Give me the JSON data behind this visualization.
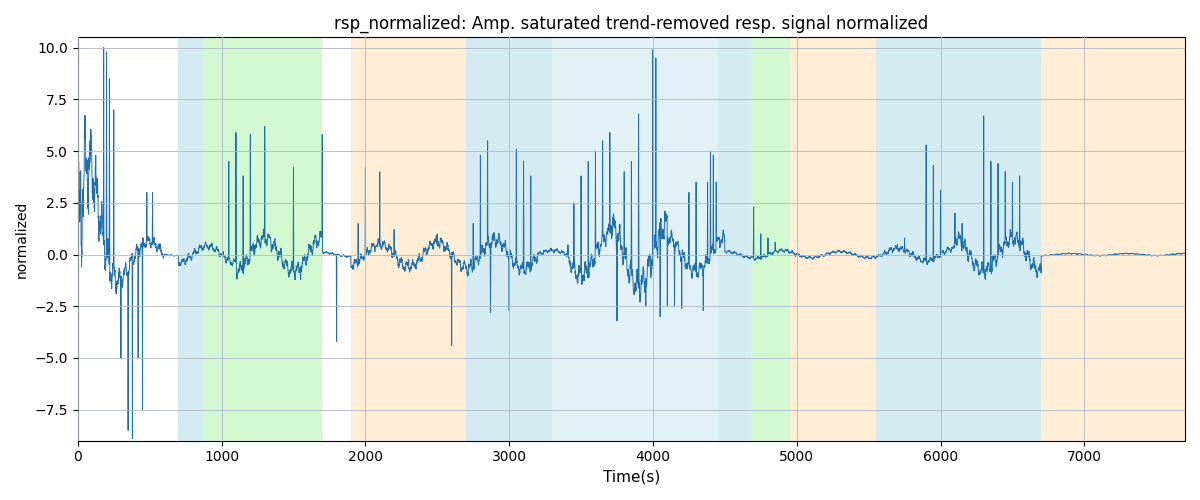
{
  "title": "rsp_normalized: Amp. saturated trend-removed resp. signal normalized",
  "xlabel": "Time(s)",
  "ylabel": "normalized",
  "xlim": [
    0,
    7700
  ],
  "ylim": [
    -9,
    10.5
  ],
  "yticks": [
    -7.5,
    -5.0,
    -2.5,
    0.0,
    2.5,
    5.0,
    7.5,
    10.0
  ],
  "xticks": [
    0,
    1000,
    2000,
    3000,
    4000,
    5000,
    6000,
    7000
  ],
  "line_color": "#1f6fad",
  "line_width": 0.7,
  "bg_color": "#ffffff",
  "grid_color": "#b0b8c8",
  "regions": [
    {
      "xstart": 700,
      "xend": 870,
      "color": "#add8e6",
      "alpha": 0.5
    },
    {
      "xstart": 870,
      "xend": 1700,
      "color": "#90ee90",
      "alpha": 0.4
    },
    {
      "xstart": 1900,
      "xend": 2700,
      "color": "#ffdead",
      "alpha": 0.5
    },
    {
      "xstart": 2700,
      "xend": 3300,
      "color": "#add8e6",
      "alpha": 0.5
    },
    {
      "xstart": 3300,
      "xend": 4450,
      "color": "#add8e6",
      "alpha": 0.35
    },
    {
      "xstart": 4450,
      "xend": 4680,
      "color": "#add8e6",
      "alpha": 0.5
    },
    {
      "xstart": 4680,
      "xend": 4950,
      "color": "#90ee90",
      "alpha": 0.4
    },
    {
      "xstart": 4950,
      "xend": 5550,
      "color": "#ffdead",
      "alpha": 0.5
    },
    {
      "xstart": 5550,
      "xend": 6700,
      "color": "#add8e6",
      "alpha": 0.5
    },
    {
      "xstart": 6700,
      "xend": 7700,
      "color": "#ffdead",
      "alpha": 0.5
    }
  ],
  "seed": 42,
  "n_samples": 7700,
  "sample_rate": 1
}
